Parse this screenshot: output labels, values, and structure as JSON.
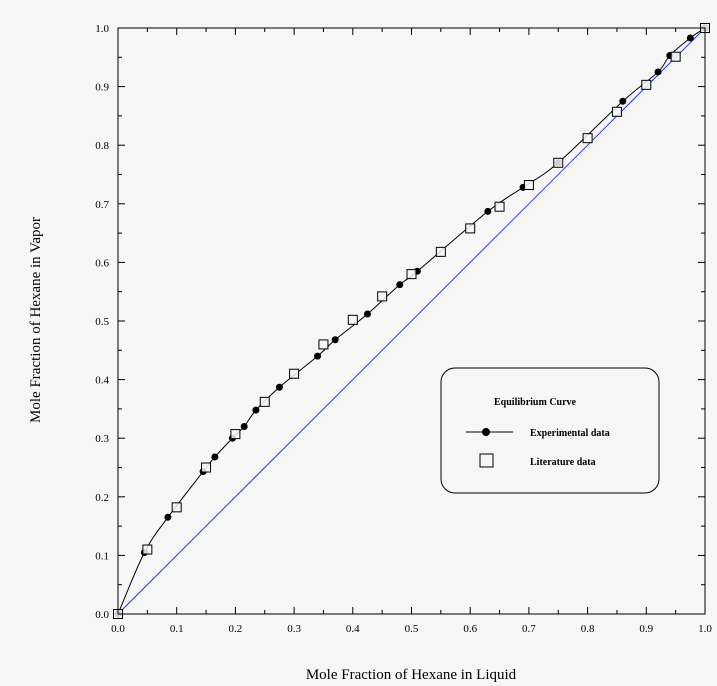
{
  "chart_data": {
    "type": "scatter",
    "title": "",
    "xlabel": "Mole Fraction of Hexane in Liquid",
    "ylabel": "Mole Fraction of Hexane in Vapor",
    "xlim": [
      0,
      1
    ],
    "ylim": [
      0,
      1
    ],
    "x_ticks": [
      "0.0",
      "0.1",
      "0.2",
      "0.3",
      "0.4",
      "0.5",
      "0.6",
      "0.7",
      "0.8",
      "0.9",
      "1.0"
    ],
    "y_ticks": [
      "0.0",
      "0.1",
      "0.2",
      "0.3",
      "0.4",
      "0.5",
      "0.6",
      "0.7",
      "0.8",
      "0.9",
      "1.0"
    ],
    "grid": false,
    "legend": {
      "title": "Equilibrium Curve",
      "position": "right",
      "entries": [
        "Experimental data",
        "Literature data"
      ]
    },
    "series": [
      {
        "name": "Experimental data",
        "marker": "filled-circle",
        "line": true,
        "color": "#000000",
        "x": [
          0.0,
          0.045,
          0.085,
          0.145,
          0.165,
          0.195,
          0.215,
          0.235,
          0.275,
          0.34,
          0.37,
          0.425,
          0.48,
          0.51,
          0.63,
          0.69,
          0.75,
          0.86,
          0.92,
          0.94,
          0.975,
          1.0
        ],
        "y": [
          0.0,
          0.105,
          0.165,
          0.243,
          0.268,
          0.3,
          0.32,
          0.348,
          0.387,
          0.44,
          0.468,
          0.512,
          0.562,
          0.585,
          0.687,
          0.728,
          0.77,
          0.875,
          0.925,
          0.953,
          0.983,
          1.0
        ]
      },
      {
        "name": "Literature data",
        "marker": "open-square",
        "line": false,
        "color": "#000000",
        "x": [
          0.0,
          0.05,
          0.1,
          0.15,
          0.2,
          0.25,
          0.3,
          0.35,
          0.4,
          0.45,
          0.5,
          0.55,
          0.6,
          0.65,
          0.7,
          0.75,
          0.8,
          0.85,
          0.9,
          0.95,
          1.0
        ],
        "y": [
          0.0,
          0.11,
          0.182,
          0.25,
          0.307,
          0.362,
          0.41,
          0.46,
          0.502,
          0.542,
          0.58,
          0.618,
          0.658,
          0.695,
          0.732,
          0.77,
          0.812,
          0.857,
          0.903,
          0.951,
          1.0
        ]
      },
      {
        "role": "diagonal",
        "line": true,
        "color": "#2a3fd6",
        "x": [
          0,
          1
        ],
        "y": [
          0,
          1
        ]
      }
    ]
  }
}
